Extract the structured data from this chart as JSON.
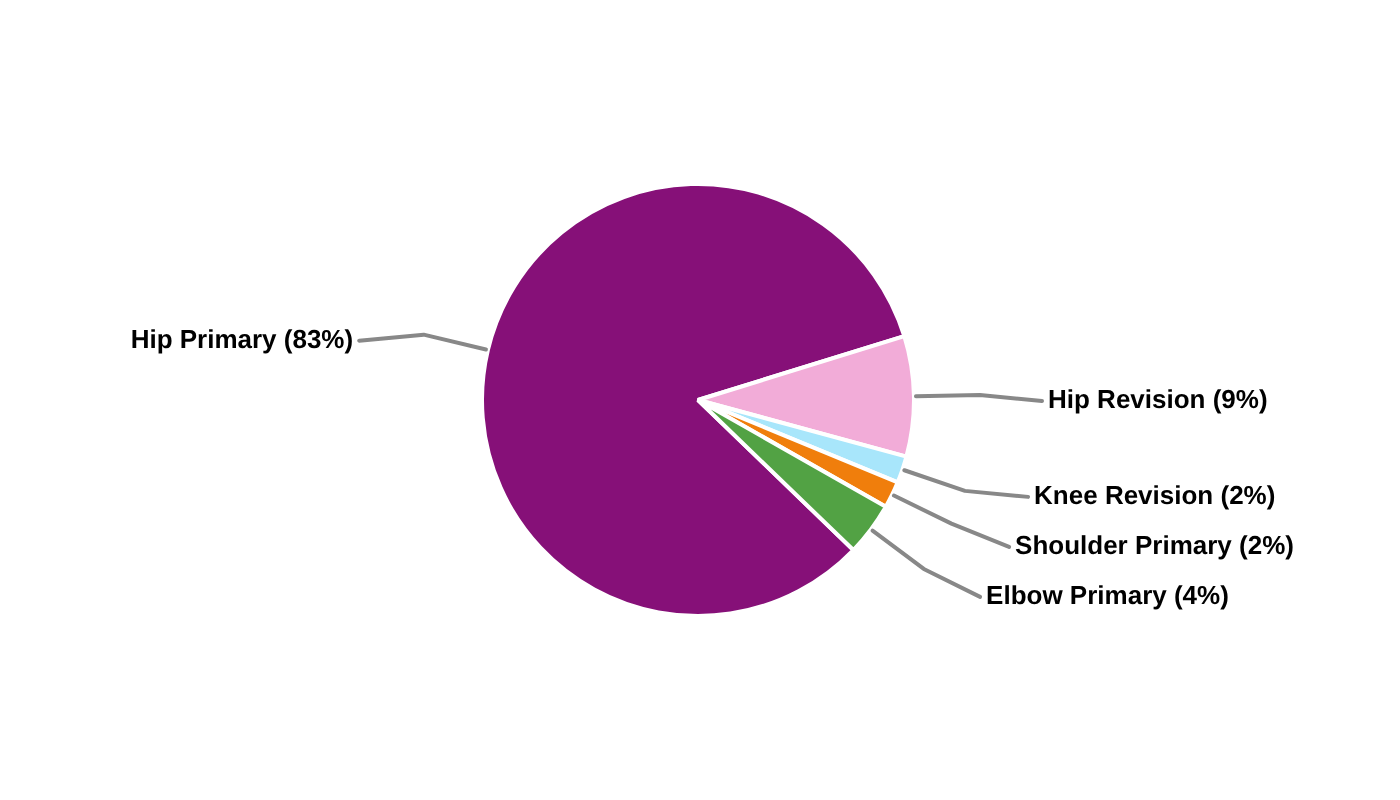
{
  "chart_data": {
    "type": "pie",
    "categories": [
      "Hip Primary",
      "Hip Revision",
      "Knee Revision",
      "Shoulder Primary",
      "Elbow Primary"
    ],
    "values": [
      83,
      9,
      2,
      2,
      4
    ],
    "colors": [
      "#861078",
      "#f2acd8",
      "#a8e6fb",
      "#f07e0c",
      "#52a244"
    ],
    "value_labels": [
      "(83%)",
      "(9%)",
      "(2%)",
      "(2%)",
      "(4%)"
    ]
  }
}
